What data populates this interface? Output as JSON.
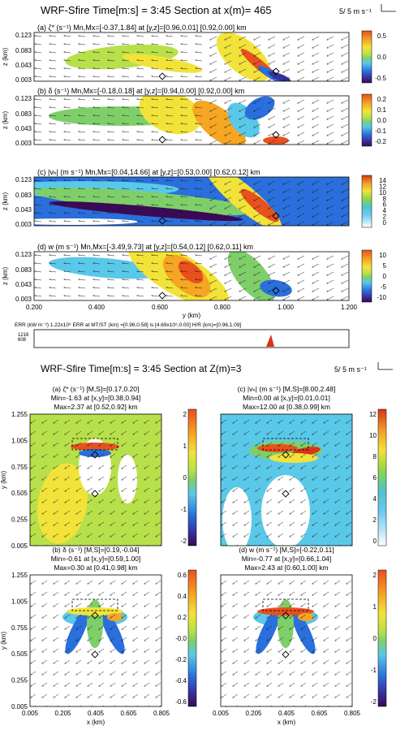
{
  "header_top": {
    "title": "WRF-Sfire Time[m:s] =  3:45 Section at x(m)=   465",
    "scale": "5/ 5 m s⁻¹"
  },
  "header_bottom": {
    "title": "WRF-Sfire Time[m:s] =  3:45 Section at Z(m)=3",
    "scale": "5/ 5 m s⁻¹"
  },
  "err_strip": {
    "label_left": "ERR (kW m⁻²)  1.22x10⁶  ERR at MT/ST (km) =[0.96,0.58] is [4.69x10⁵,0.00]   H/R (km)=[0.96,1.09]",
    "ticks": [
      "1216",
      "608"
    ]
  },
  "chart_data": [
    {
      "type": "heatmap",
      "panel": "top-a",
      "title": "(a)  ζ* (s⁻¹)  Mn,Mx=[-0.37,1.84]  at  [y,z]=[0.96,0.01]    [0.92,0.00]  km",
      "ylabel": "z (km)",
      "yticks": [
        "0.123",
        "0.083",
        "0.043",
        "0.003"
      ],
      "colorbar": {
        "ticks": [
          "0.5",
          "0.0",
          "-0.5"
        ]
      }
    },
    {
      "type": "heatmap",
      "panel": "top-b",
      "title": "(b)  δ (s⁻¹)  Mn,Mx=[-0.18,0.18]  at  [y,z]=[0.94,0.00]    [0.92,0.00]  km",
      "ylabel": "z (km)",
      "yticks": [
        "0.123",
        "0.083",
        "0.043",
        "0.003"
      ],
      "colorbar": {
        "ticks": [
          "0.2",
          "0.1",
          "0.0",
          "-0.1",
          "-0.2"
        ]
      }
    },
    {
      "type": "heatmap",
      "panel": "top-c",
      "title": "(c)  |vₕ| (m s⁻¹)  Mn,Mx=[0.04,14.66]  at  [y,z]=[0.53,0.00]    [0.62,0.12]  km",
      "ylabel": "z (km)",
      "yticks": [
        "0.123",
        "0.083",
        "0.043",
        "0.003"
      ],
      "colorbar": {
        "ticks": [
          "14",
          "12",
          "10",
          "8",
          "6",
          "4",
          "2",
          "0"
        ]
      }
    },
    {
      "type": "heatmap",
      "panel": "top-d",
      "title": "(d)  w  (m s⁻¹)  Mn,Mx=[-3.49,9.73]  at  [y,z]=[0.54,0.12]    [0.62,0.11]  km",
      "ylabel": "z (km)",
      "xlabel": "y (km)",
      "yticks": [
        "0.123",
        "0.083",
        "0.043",
        "0.003"
      ],
      "xticks": [
        "0.200",
        "0.400",
        "0.600",
        "0.800",
        "1.000",
        "1.200"
      ],
      "colorbar": {
        "ticks": [
          "10",
          "5",
          "0",
          "-5",
          "-10"
        ]
      }
    },
    {
      "type": "heatmap",
      "panel": "bottom-a",
      "title1": "(a)  ζ* (s⁻¹)  [M,S]=[0.17,0.20]",
      "title2": "Min=-1.63  at  [x,y]=[0.38,0.94]",
      "title3": "Max=2.37  at   [0.52,0.92]  km",
      "ylabel": "y (km)",
      "yticks": [
        "1.255",
        "1.005",
        "0.755",
        "0.505",
        "0.255",
        "0.005"
      ],
      "colorbar": {
        "ticks": [
          "2",
          "1",
          "0",
          "-1",
          "-2"
        ]
      }
    },
    {
      "type": "heatmap",
      "panel": "bottom-c",
      "title1": "(c)  |vₕ| (m s⁻¹)  [M,S]=[8.00,2.48]",
      "title2": "Min=0.00  at  [x,y]=[0.01,0.01]",
      "title3": "Max=12.00  at   [0.38,0.99]  km",
      "colorbar": {
        "ticks": [
          "12",
          "10",
          "8",
          "6",
          "4",
          "2",
          "0"
        ]
      }
    },
    {
      "type": "heatmap",
      "panel": "bottom-b",
      "title1": "(b)  δ (s⁻¹)  [M,S]=[0.19,-0.04]",
      "title2": "Min=-0.61  at  [x,y]=[0.59,1.00]",
      "title3": "Max=0.30  at   [0.41,0.98]  km",
      "ylabel": "y (km)",
      "xlabel": "x (km)",
      "yticks": [
        "1.255",
        "1.005",
        "0.755",
        "0.505",
        "0.255",
        "0.005"
      ],
      "xticks": [
        "0.005",
        "0.205",
        "0.405",
        "0.605",
        "0.805"
      ],
      "colorbar": {
        "ticks": [
          "0.6",
          "0.4",
          "0.2",
          "-0.0",
          "-0.2",
          "-0.4",
          "-0.6"
        ]
      }
    },
    {
      "type": "heatmap",
      "panel": "bottom-d",
      "title1": "(d)  w  (m s⁻¹)  [M,S]=[-0.22,0.11]",
      "title2": "Min=-0.77  at  [x,y]=[0.66,1.04]",
      "title3": "Max=2.43  at   [0.60,1.00]  km",
      "xlabel": "x (km)",
      "xticks": [
        "0.005",
        "0.205",
        "0.405",
        "0.605",
        "0.805"
      ],
      "colorbar": {
        "ticks": [
          "2",
          "1",
          "0",
          "-1",
          "-2"
        ]
      }
    }
  ]
}
